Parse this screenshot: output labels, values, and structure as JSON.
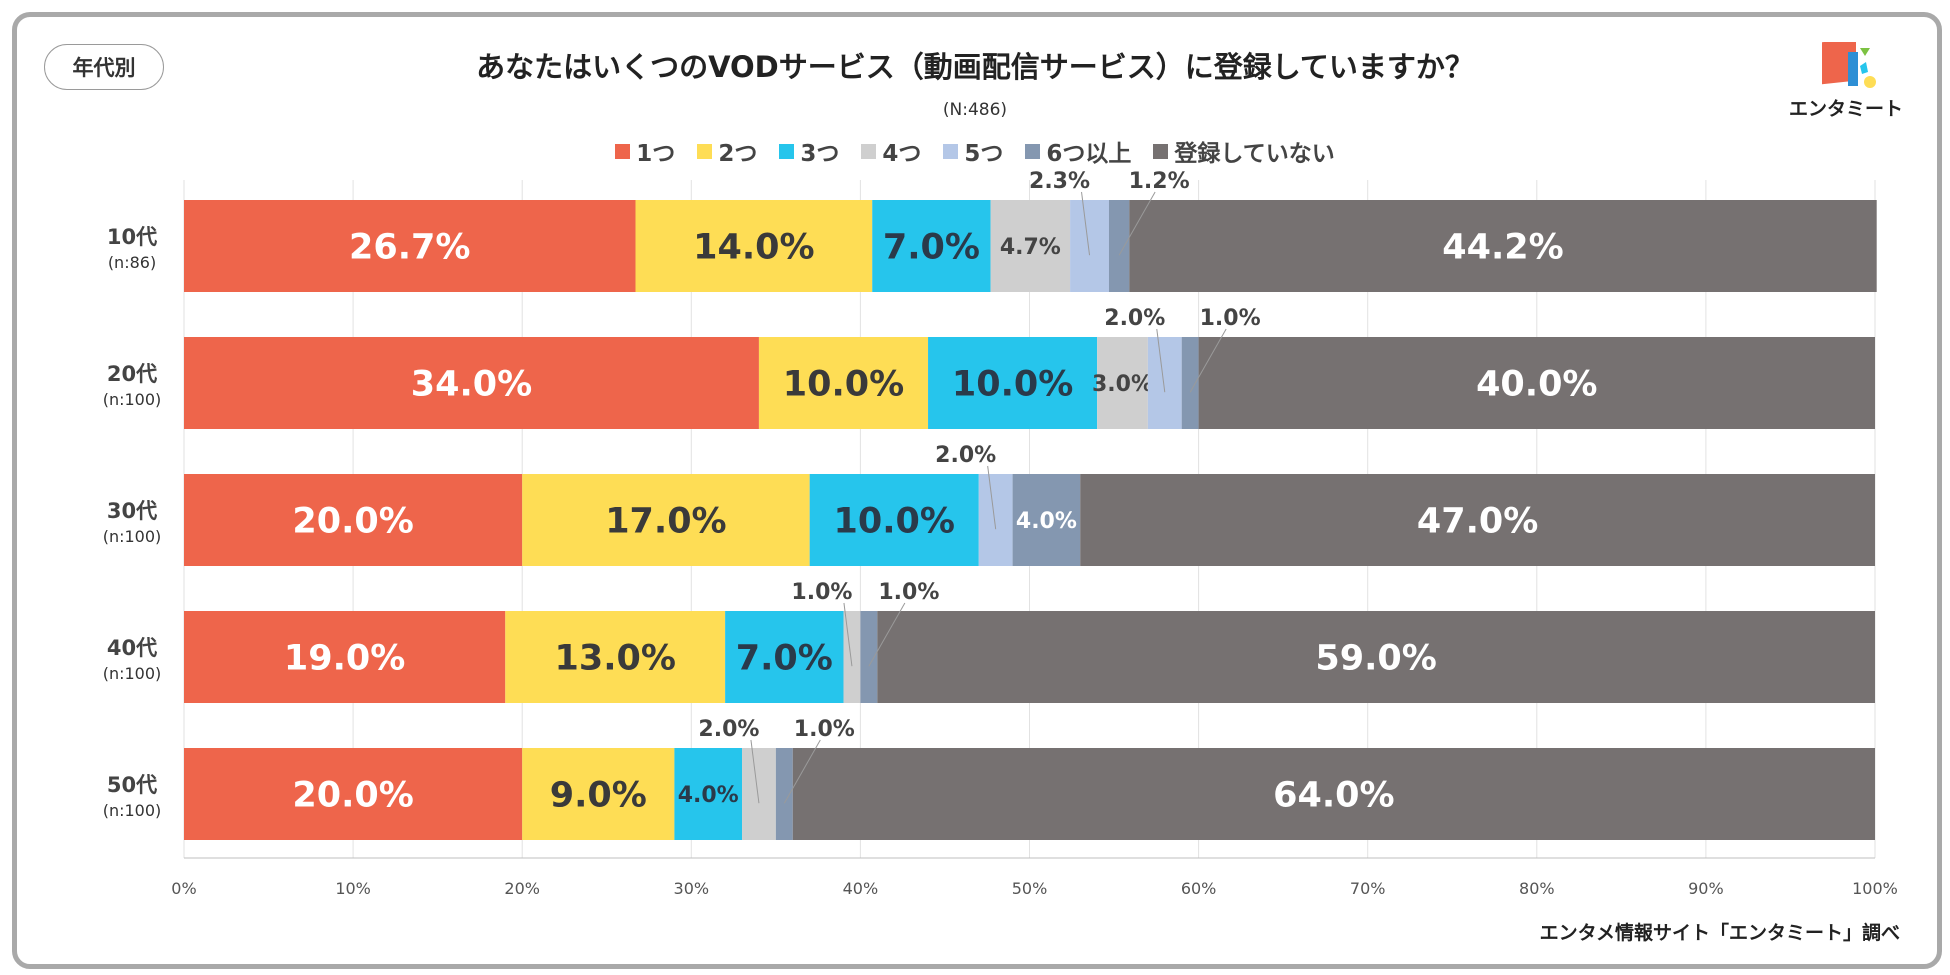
{
  "tag_label": "年代別",
  "title": "あなたはいくつのVODサービス（動画配信サービス）に登録していますか？",
  "sample_size": "(N:486)",
  "logo_text": "エンタミート",
  "source": "エンタメ情報サイト「エンタミート」調べ",
  "chart_data": {
    "type": "bar",
    "orientation": "horizontal",
    "stacked": "percent",
    "title": "あなたはいくつのVODサービス（動画配信サービス）に登録していますか？",
    "legend_position": "top",
    "xlim": [
      0,
      100
    ],
    "x_ticks": [
      "0%",
      "10%",
      "20%",
      "30%",
      "40%",
      "50%",
      "60%",
      "70%",
      "80%",
      "90%",
      "100%"
    ],
    "categories": [
      {
        "label": "10代",
        "n": "(n:86)"
      },
      {
        "label": "20代",
        "n": "(n:100)"
      },
      {
        "label": "30代",
        "n": "(n:100)"
      },
      {
        "label": "40代",
        "n": "(n:100)"
      },
      {
        "label": "50代",
        "n": "(n:100)"
      }
    ],
    "series": [
      {
        "name": "1つ",
        "color": "#EE654B",
        "label_color": "#ffffff",
        "values": [
          26.7,
          34.0,
          20.0,
          19.0,
          20.0
        ],
        "labels": [
          "26.7%",
          "34.0%",
          "20.0%",
          "19.0%",
          "20.0%"
        ]
      },
      {
        "name": "2つ",
        "color": "#FEDD55",
        "label_color": "#3a3a3a",
        "values": [
          14.0,
          10.0,
          17.0,
          13.0,
          9.0
        ],
        "labels": [
          "14.0%",
          "10.0%",
          "17.0%",
          "13.0%",
          "9.0%"
        ]
      },
      {
        "name": "3つ",
        "color": "#26C5EC",
        "label_color": "#2a3a4a",
        "values": [
          7.0,
          10.0,
          10.0,
          7.0,
          4.0
        ],
        "labels": [
          "7.0%",
          "10.0%",
          "10.0%",
          "7.0%",
          "4.0%"
        ]
      },
      {
        "name": "4つ",
        "color": "#CFCFCF",
        "label_color": "#444444",
        "values": [
          4.7,
          3.0,
          0.0,
          1.0,
          2.0
        ],
        "labels": [
          "4.7%",
          "3.0%",
          "",
          "1.0%",
          "2.0%"
        ]
      },
      {
        "name": "5つ",
        "color": "#B4C7E7",
        "label_color": "#444444",
        "values": [
          2.3,
          2.0,
          2.0,
          0.0,
          0.0
        ],
        "labels": [
          "2.3%",
          "2.0%",
          "2.0%",
          "",
          ""
        ]
      },
      {
        "name": "6つ以上",
        "color": "#8497B0",
        "label_color": "#ffffff",
        "values": [
          1.2,
          1.0,
          4.0,
          1.0,
          1.0
        ],
        "labels": [
          "1.2%",
          "1.0%",
          "4.0%",
          "1.0%",
          "1.0%"
        ]
      },
      {
        "name": "登録していない",
        "color": "#767171",
        "label_color": "#ffffff",
        "values": [
          44.2,
          40.0,
          47.0,
          59.0,
          64.0
        ],
        "labels": [
          "44.2%",
          "40.0%",
          "47.0%",
          "59.0%",
          "64.0%"
        ]
      }
    ]
  }
}
